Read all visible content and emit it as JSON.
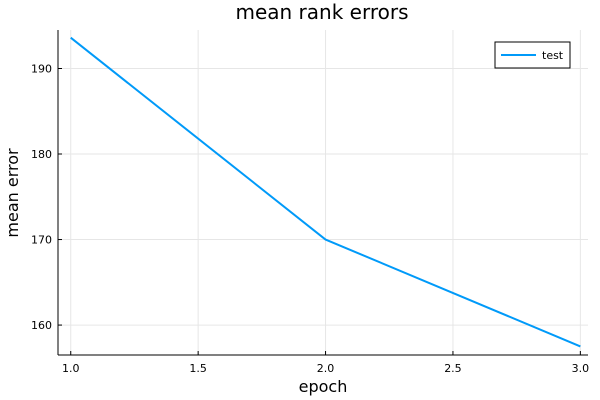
{
  "chart_data": {
    "type": "line",
    "title": "mean rank errors",
    "xlabel": "epoch",
    "ylabel": "mean error",
    "x": [
      1.0,
      2.0,
      3.0
    ],
    "series": [
      {
        "name": "test",
        "values": [
          193.6,
          170.0,
          157.5
        ],
        "color": "#009af9"
      }
    ],
    "xlim": [
      0.95,
      3.03
    ],
    "ylim": [
      156.5,
      194.5
    ],
    "xticks": [
      1.0,
      1.5,
      2.0,
      2.5,
      3.0
    ],
    "xtick_labels": [
      "1.0",
      "1.5",
      "2.0",
      "2.5",
      "3.0"
    ],
    "yticks": [
      160,
      170,
      180,
      190
    ],
    "ytick_labels": [
      "160",
      "170",
      "180",
      "190"
    ],
    "grid": true,
    "legend_position": "top-right"
  }
}
